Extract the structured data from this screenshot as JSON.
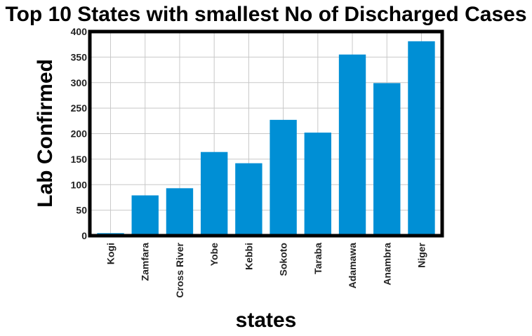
{
  "chart_data": {
    "type": "bar",
    "title": "Top 10 States with smallest No of Discharged Cases",
    "xlabel": "states",
    "ylabel": "Lab Confirmed",
    "categories": [
      "Kogi",
      "Zamfara",
      "Cross River",
      "Yobe",
      "Kebbi",
      "Sokoto",
      "Taraba",
      "Adamawa",
      "Anambra",
      "Niger"
    ],
    "values": [
      5,
      79,
      93,
      164,
      142,
      227,
      202,
      355,
      299,
      381
    ],
    "ylim": [
      0,
      400
    ],
    "yticks": [
      0,
      50,
      100,
      150,
      200,
      250,
      300,
      350,
      400
    ],
    "grid": true,
    "bar_color": "#008fd5",
    "legend": "none"
  }
}
